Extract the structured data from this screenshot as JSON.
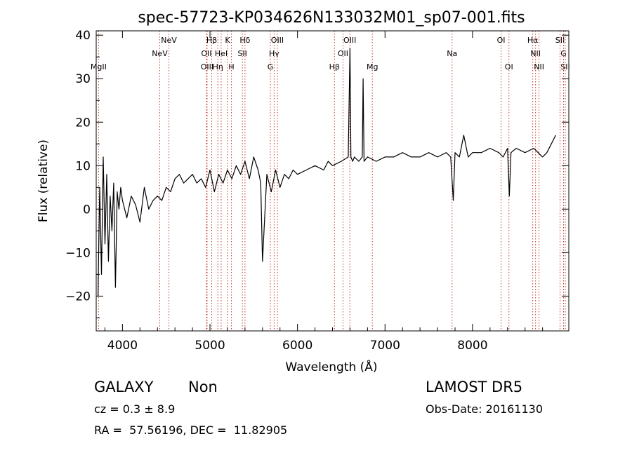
{
  "chart_data": {
    "type": "line",
    "title": "spec-57723-KP034626N133032M01_sp07-001.fits",
    "xlabel": "Wavelength (Å)",
    "ylabel": "Flux (relative)",
    "xlim": [
      3700,
      9100
    ],
    "ylim": [
      -28,
      41
    ],
    "xticks": [
      4000,
      5000,
      6000,
      7000,
      8000
    ],
    "yticks": [
      -20,
      -10,
      0,
      10,
      20,
      30,
      40
    ],
    "x_tick_labels": [
      "4000",
      "5000",
      "6000",
      "7000",
      "8000"
    ],
    "y_tick_labels": [
      "−20",
      "−10",
      "0",
      "10",
      "20",
      "30",
      "40"
    ],
    "series": [
      {
        "color": "#000000",
        "x": [
          3720,
          3740,
          3760,
          3780,
          3800,
          3820,
          3840,
          3860,
          3880,
          3900,
          3920,
          3940,
          3960,
          3980,
          4000,
          4050,
          4100,
          4150,
          4200,
          4250,
          4300,
          4350,
          4400,
          4450,
          4500,
          4550,
          4600,
          4650,
          4700,
          4750,
          4800,
          4850,
          4900,
          4950,
          5000,
          5050,
          5100,
          5150,
          5200,
          5250,
          5300,
          5350,
          5400,
          5450,
          5500,
          5550,
          5580,
          5600,
          5650,
          5700,
          5750,
          5800,
          5850,
          5900,
          5950,
          6000,
          6100,
          6200,
          6300,
          6350,
          6400,
          6500,
          6580,
          6600,
          6610,
          6630,
          6650,
          6700,
          6740,
          6750,
          6760,
          6800,
          6900,
          7000,
          7100,
          7200,
          7300,
          7400,
          7500,
          7600,
          7700,
          7750,
          7780,
          7800,
          7850,
          7900,
          7950,
          8000,
          8100,
          8200,
          8300,
          8350,
          8400,
          8420,
          8440,
          8500,
          8600,
          8700,
          8800,
          8850,
          8900,
          8950
        ],
        "y": [
          -20,
          5,
          -15,
          12,
          -8,
          8,
          -12,
          3,
          -5,
          6,
          -18,
          4,
          0,
          5,
          2,
          -2,
          3,
          1,
          -3,
          5,
          0,
          2,
          3,
          2,
          5,
          4,
          7,
          8,
          6,
          7,
          8,
          6,
          7,
          5,
          9,
          4,
          8,
          6,
          9,
          7,
          10,
          8,
          11,
          7,
          12,
          9,
          6,
          -12,
          8,
          4,
          9,
          5,
          8,
          7,
          9,
          8,
          9,
          10,
          9,
          11,
          10,
          11,
          12,
          37,
          12,
          11,
          12,
          11,
          12,
          30,
          11,
          12,
          11,
          12,
          12,
          13,
          12,
          12,
          13,
          12,
          13,
          12,
          2,
          13,
          12,
          17,
          12,
          13,
          13,
          14,
          13,
          12,
          14,
          3,
          13,
          14,
          13,
          14,
          12,
          13,
          15,
          17
        ]
      }
    ],
    "lines": [
      {
        "wavelength": 3727,
        "label": "MgII",
        "row": 2
      },
      {
        "wavelength": 4426,
        "label": "NeV",
        "row": 1
      },
      {
        "wavelength": 4531,
        "label": "NeV",
        "row": 0
      },
      {
        "wavelength": 4959,
        "label": "OII",
        "row": 1
      },
      {
        "wavelength": 4967,
        "label": "OIII",
        "row": 2
      },
      {
        "wavelength": 5020,
        "label": "Hβ",
        "row": 0
      },
      {
        "wavelength": 5090,
        "label": "Hη",
        "row": 2
      },
      {
        "wavelength": 5128,
        "label": "HeI",
        "row": 1
      },
      {
        "wavelength": 5200,
        "label": "K",
        "row": 0
      },
      {
        "wavelength": 5245,
        "label": "H",
        "row": 2
      },
      {
        "wavelength": 5370,
        "label": "SII",
        "row": 1
      },
      {
        "wavelength": 5400,
        "label": "Hδ",
        "row": 0
      },
      {
        "wavelength": 5690,
        "label": "G",
        "row": 2
      },
      {
        "wavelength": 5733,
        "label": "Hγ",
        "row": 1
      },
      {
        "wavelength": 5770,
        "label": "OIII",
        "row": 0
      },
      {
        "wavelength": 6422,
        "label": "Hβ",
        "row": 2
      },
      {
        "wavelength": 6520,
        "label": "OII",
        "row": 1
      },
      {
        "wavelength": 6598,
        "label": "OIII",
        "row": 0
      },
      {
        "wavelength": 6855,
        "label": "Mg",
        "row": 2
      },
      {
        "wavelength": 7766,
        "label": "Na",
        "row": 1
      },
      {
        "wavelength": 8326,
        "label": "OI",
        "row": 0
      },
      {
        "wavelength": 8416,
        "label": "OI",
        "row": 2
      },
      {
        "wavelength": 8688,
        "label": "Hα",
        "row": 0
      },
      {
        "wavelength": 8720,
        "label": "NII",
        "row": 1
      },
      {
        "wavelength": 8760,
        "label": "NII",
        "row": 2
      },
      {
        "wavelength": 9000,
        "label": "SII",
        "row": 0
      },
      {
        "wavelength": 9040,
        "label": "G",
        "row": 1
      },
      {
        "wavelength": 9060,
        "label": "SII",
        "row": 2
      }
    ],
    "line_color": "#c0392b"
  },
  "info": {
    "class_label": "GALAXY",
    "subclass_label": "Non",
    "survey": "LAMOST DR5",
    "cz_text": "cz = 0.3 ± 8.9",
    "obs_date": "Obs-Date: 20161130",
    "radec": "RA =  57.56196, DEC =  11.82905"
  }
}
